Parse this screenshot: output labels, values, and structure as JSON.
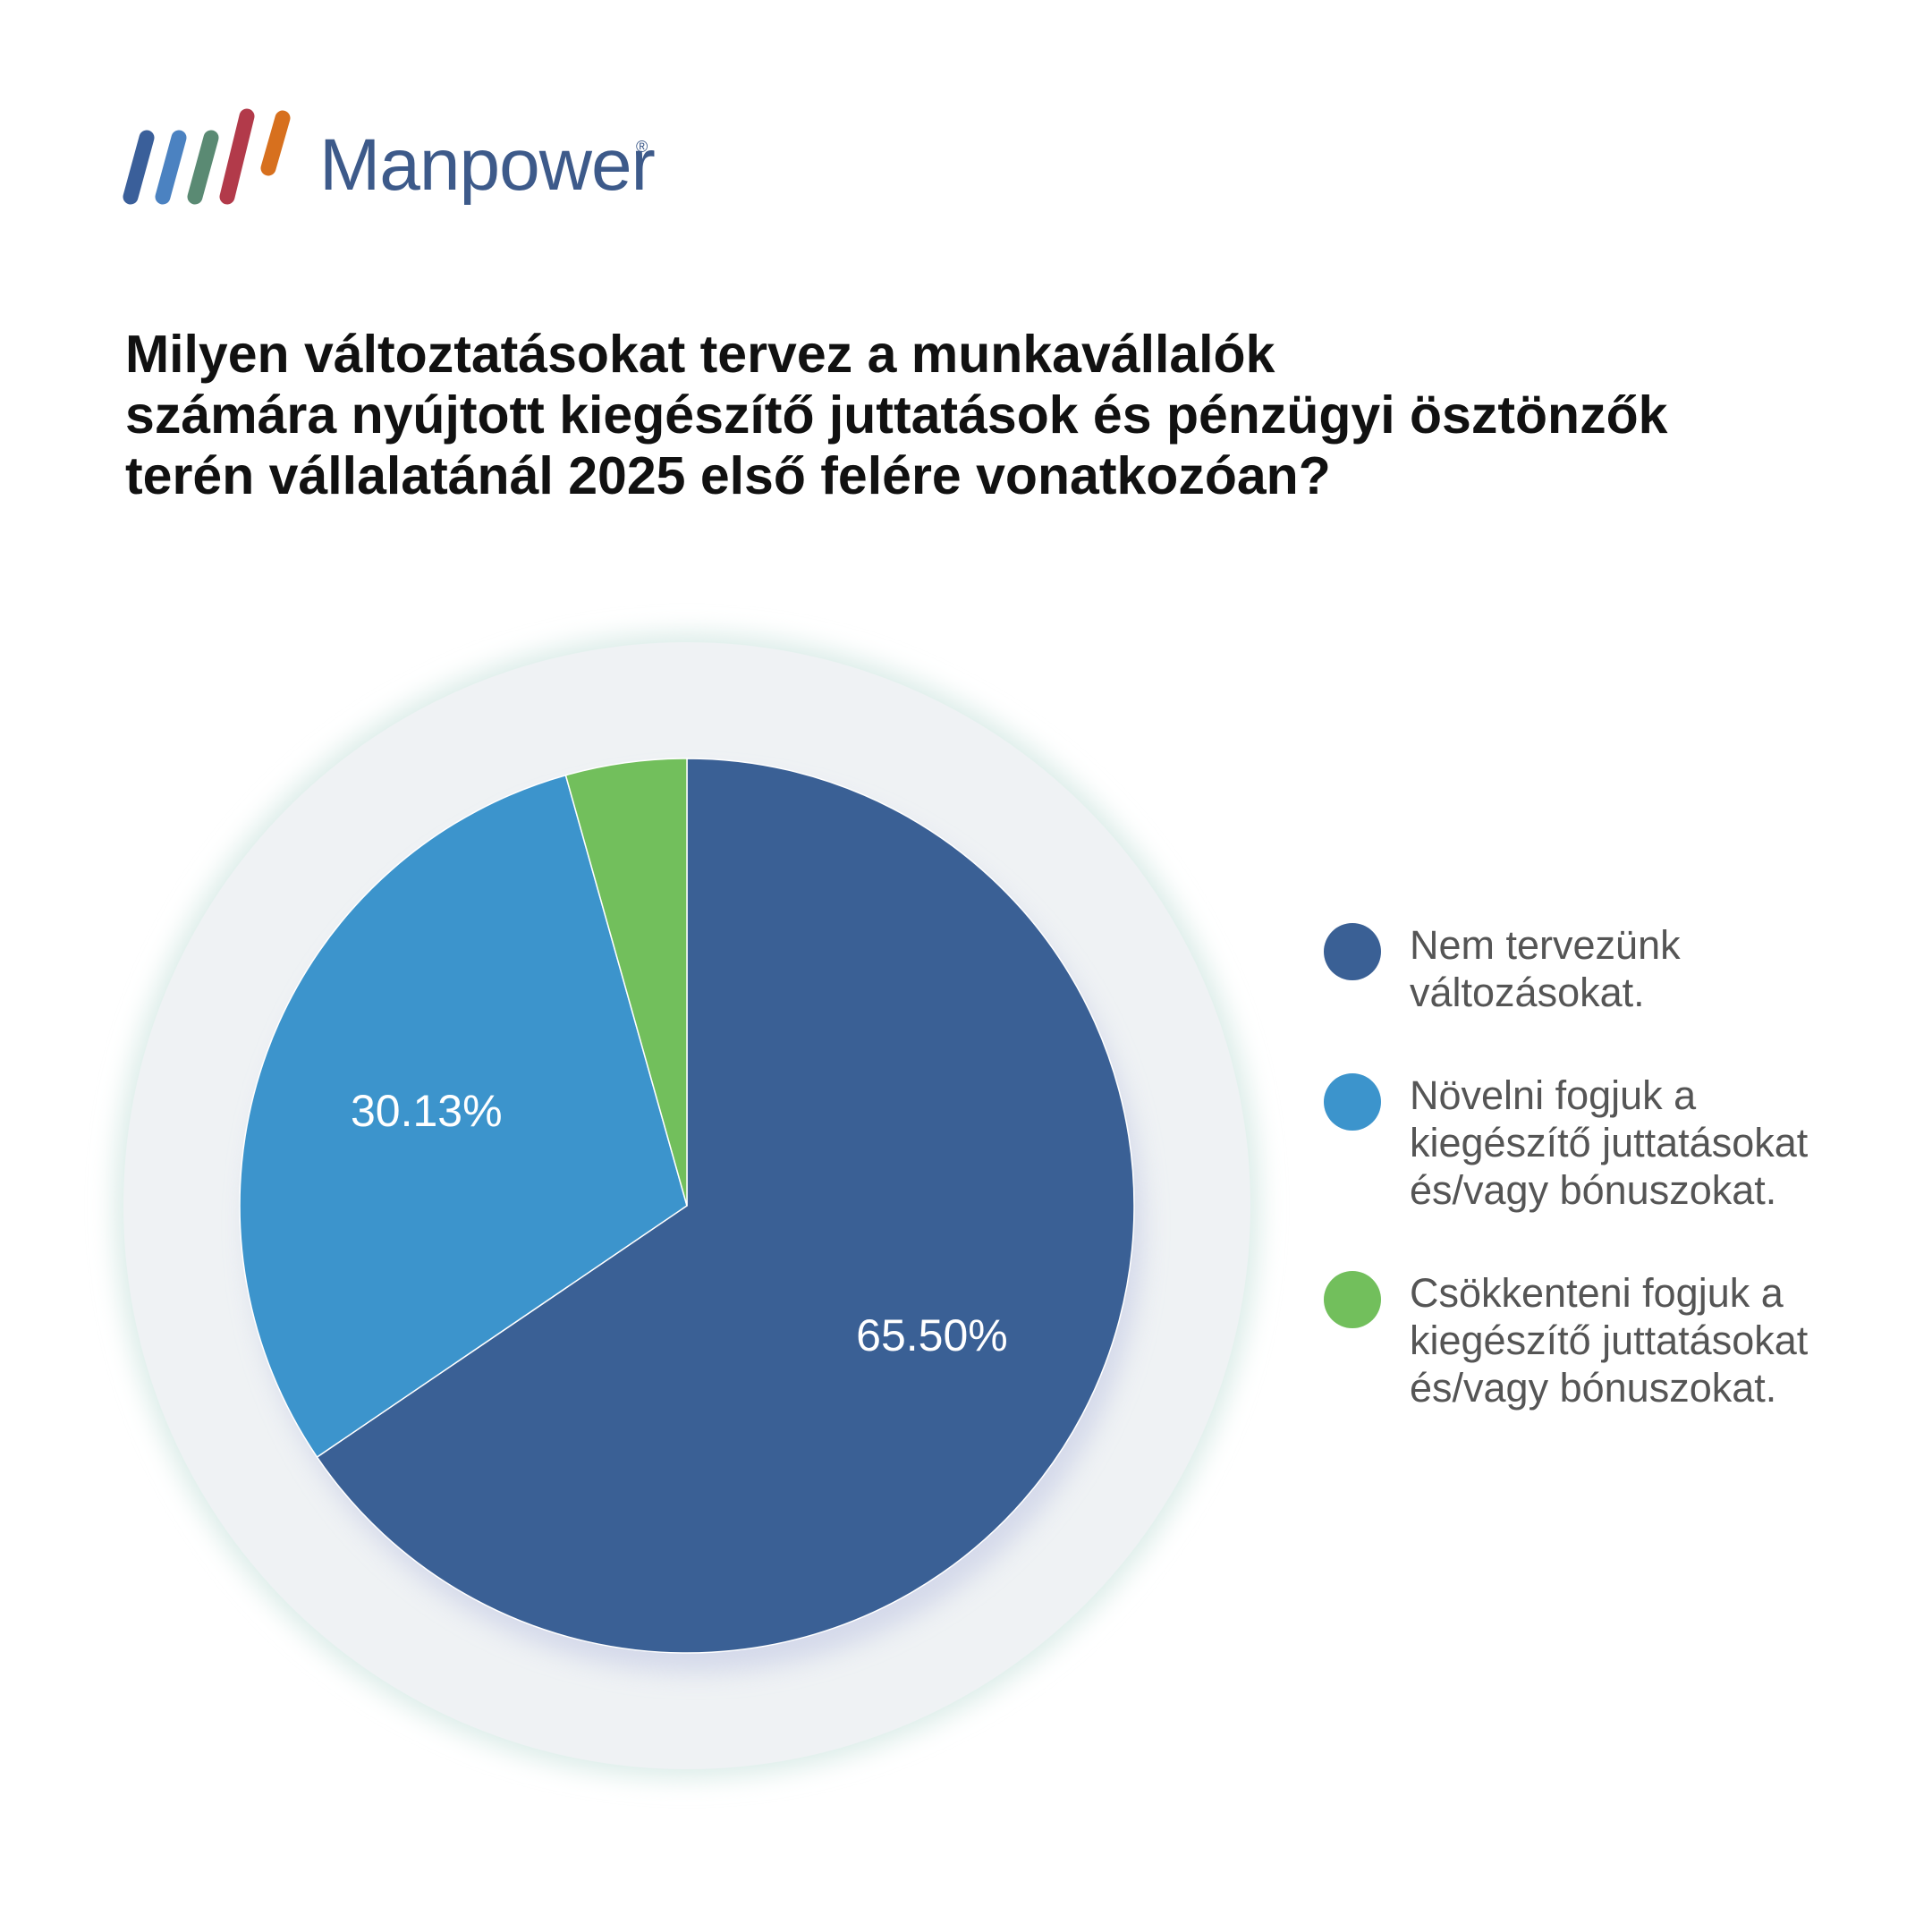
{
  "brand": {
    "name": "Manpower",
    "registered_mark": "®",
    "stripe_colors": [
      "#3a5f9a",
      "#4b82c1",
      "#5a8a73",
      "#b23a4a",
      "#d7701e"
    ]
  },
  "title": "Milyen változtatásokat tervez a munkavállalók\nszámára nyújtott kiegészítő juttatások és pénzügyi ösztönzők\n terén vállalatánál 2025 első felére vonatkozóan?",
  "chart_data": {
    "type": "pie",
    "title": "Milyen változtatásokat tervez a munkavállalók számára nyújtott kiegészítő juttatások és pénzügyi ösztönzők terén vállalatánál 2025 első felére vonatkozóan?",
    "slices": [
      {
        "label": "Nem tervezünk változásokat.",
        "value": 65.5,
        "value_label": "65.50%",
        "color": "#3a6095"
      },
      {
        "label": "Növelni fogjuk a kiegészítő juttatásokat és/vagy bónuszokat.",
        "value": 30.13,
        "value_label": "30.13%",
        "color": "#3c94cc"
      },
      {
        "label": "Csökkenteni fogjuk a kiegészítő juttatásokat és/vagy bónuszokat.",
        "value": 4.37,
        "value_label": "",
        "color": "#72bf5c"
      }
    ],
    "start_angle_deg": 0,
    "direction": "clockwise",
    "legend_position": "right"
  },
  "legend": {
    "items": [
      {
        "text": "Nem tervezünk\nváltozásokat.",
        "color": "#3a6095"
      },
      {
        "text": "Növelni fogjuk a\nkiegészítő juttatásokat\nés/vagy bónuszokat.",
        "color": "#3c94cc"
      },
      {
        "text": "Csökkenteni fogjuk a\nkiegészítő juttatásokat\nés/vagy bónuszokat.",
        "color": "#72bf5c"
      }
    ]
  },
  "backdrop_color": "#eff2f4"
}
